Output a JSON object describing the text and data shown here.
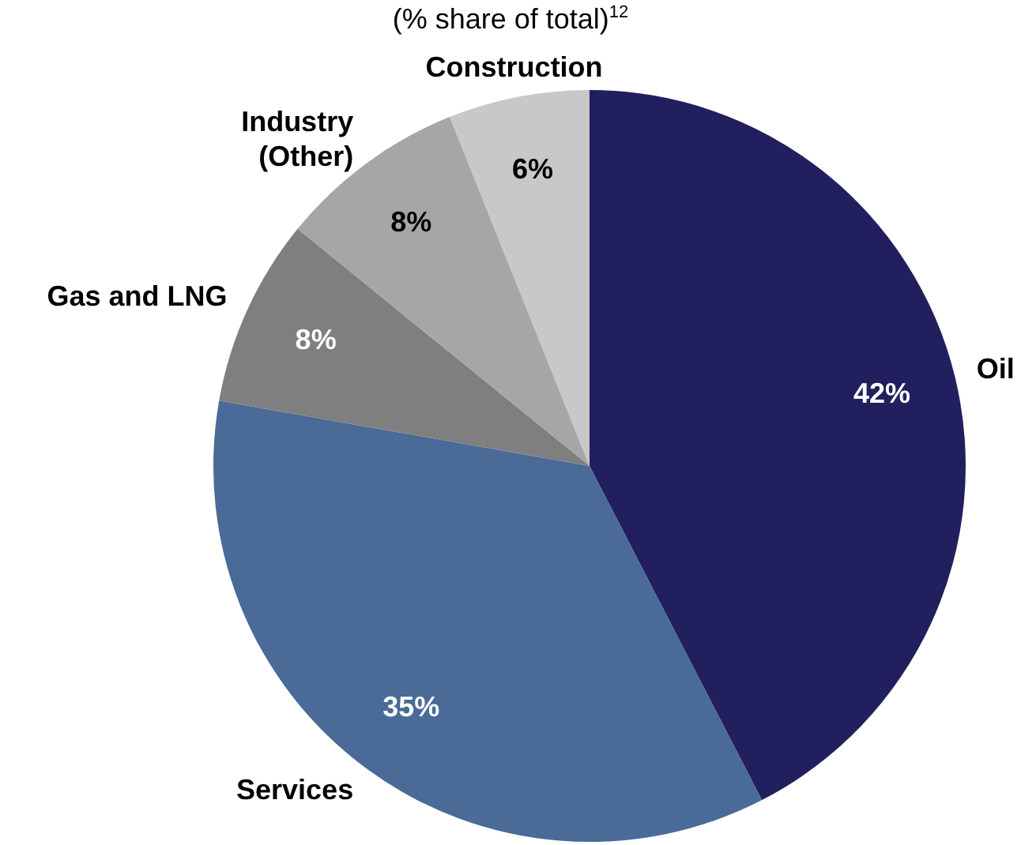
{
  "chart_data": {
    "type": "pie",
    "subtitle": "(% share of total)$^{12}$",
    "categories": [
      "Oil",
      "Services",
      "Gas and LNG",
      "Industry (Other)",
      "Construction"
    ],
    "values": [
      42,
      35,
      8,
      8,
      6
    ],
    "value_labels": [
      "42%",
      "35%",
      "8%",
      "8%",
      "6%"
    ],
    "colors": [
      "#221f5e",
      "#4a6a98",
      "#7f7f7f",
      "#a6a6a6",
      "#c8c8c8"
    ],
    "legend": false
  }
}
